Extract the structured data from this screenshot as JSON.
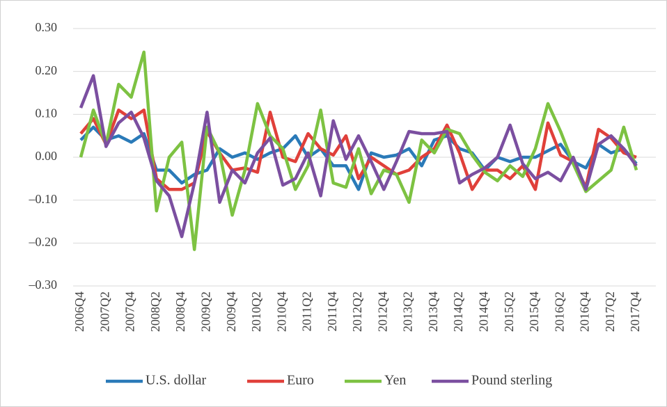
{
  "chart_data": {
    "type": "line",
    "categories": [
      "2006Q4",
      null,
      "2007Q2",
      null,
      "2007Q4",
      null,
      "2008Q2",
      null,
      "2008Q4",
      null,
      "2009Q2",
      null,
      "2009Q4",
      null,
      "2010Q2",
      null,
      "2010Q4",
      null,
      "2011Q2",
      null,
      "2011Q4",
      null,
      "2012Q2",
      null,
      "2012Q4",
      null,
      "2013Q2",
      null,
      "2013Q4",
      null,
      "2014Q2",
      null,
      "2014Q4",
      null,
      "2015Q2",
      null,
      "2015Q4",
      null,
      "2016Q2",
      null,
      "2016Q4",
      null,
      "2017Q2",
      null,
      "2017Q4"
    ],
    "series": [
      {
        "name": "U.S. dollar",
        "color": "#2a7ab8",
        "values": [
          0.04,
          0.07,
          0.04,
          0.05,
          0.035,
          0.055,
          -0.03,
          -0.03,
          -0.06,
          -0.04,
          -0.03,
          0.02,
          0.0,
          0.01,
          -0.005,
          0.01,
          0.02,
          0.05,
          0.0,
          0.02,
          -0.02,
          -0.02,
          -0.075,
          0.01,
          0.0,
          0.005,
          0.02,
          -0.02,
          0.04,
          0.05,
          0.02,
          0.01,
          -0.03,
          0.0,
          -0.01,
          0.0,
          0.0,
          0.015,
          0.03,
          -0.01,
          -0.025,
          0.03,
          0.01,
          0.02,
          -0.015
        ]
      },
      {
        "name": "Euro",
        "color": "#e0403a",
        "values": [
          0.055,
          0.09,
          0.03,
          0.11,
          0.09,
          0.11,
          -0.05,
          -0.075,
          -0.075,
          -0.06,
          0.06,
          0.01,
          -0.03,
          -0.025,
          -0.035,
          0.105,
          0.0,
          -0.01,
          0.055,
          0.02,
          0.005,
          0.05,
          -0.05,
          0.0,
          -0.02,
          -0.04,
          -0.03,
          0.0,
          0.02,
          0.075,
          0.01,
          -0.075,
          -0.03,
          -0.03,
          -0.05,
          -0.02,
          -0.075,
          0.08,
          0.005,
          -0.01,
          -0.07,
          0.065,
          0.045,
          0.01,
          0.0
        ]
      },
      {
        "name": "Yen",
        "color": "#7dc242",
        "values": [
          0.0,
          0.11,
          0.03,
          0.17,
          0.14,
          0.245,
          -0.125,
          0.0,
          0.035,
          -0.215,
          0.07,
          0.01,
          -0.135,
          -0.03,
          0.125,
          0.05,
          0.02,
          -0.075,
          -0.02,
          0.11,
          -0.06,
          -0.07,
          0.02,
          -0.085,
          -0.03,
          -0.04,
          -0.105,
          0.04,
          0.01,
          0.065,
          0.055,
          0.005,
          -0.035,
          -0.055,
          -0.02,
          -0.045,
          0.02,
          0.125,
          0.06,
          -0.015,
          -0.08,
          -0.055,
          -0.03,
          0.07,
          -0.03
        ]
      },
      {
        "name": "Pound sterling",
        "color": "#7b4fa0",
        "values": [
          0.115,
          0.19,
          0.025,
          0.08,
          0.105,
          0.045,
          -0.055,
          -0.09,
          -0.185,
          -0.06,
          0.105,
          -0.105,
          -0.03,
          -0.06,
          0.01,
          0.045,
          -0.065,
          -0.05,
          0.01,
          -0.09,
          0.085,
          -0.005,
          0.05,
          -0.01,
          -0.075,
          -0.01,
          0.06,
          0.055,
          0.055,
          0.06,
          -0.06,
          -0.04,
          -0.025,
          0.0,
          0.075,
          -0.015,
          -0.05,
          -0.035,
          -0.055,
          0.0,
          -0.075,
          0.03,
          0.05,
          0.02,
          -0.02
        ]
      }
    ],
    "ylim": [
      -0.3,
      0.3
    ],
    "yticks": [
      {
        "value": -0.3,
        "label": "–0.30"
      },
      {
        "value": -0.2,
        "label": "–0.20"
      },
      {
        "value": -0.1,
        "label": "–0.10"
      },
      {
        "value": 0,
        "label": "0.00"
      },
      {
        "value": 0.1,
        "label": "0.10"
      },
      {
        "value": 0.2,
        "label": "0.20"
      },
      {
        "value": 0.3,
        "label": "0.30"
      }
    ],
    "grid": true,
    "legend": "bottom"
  }
}
